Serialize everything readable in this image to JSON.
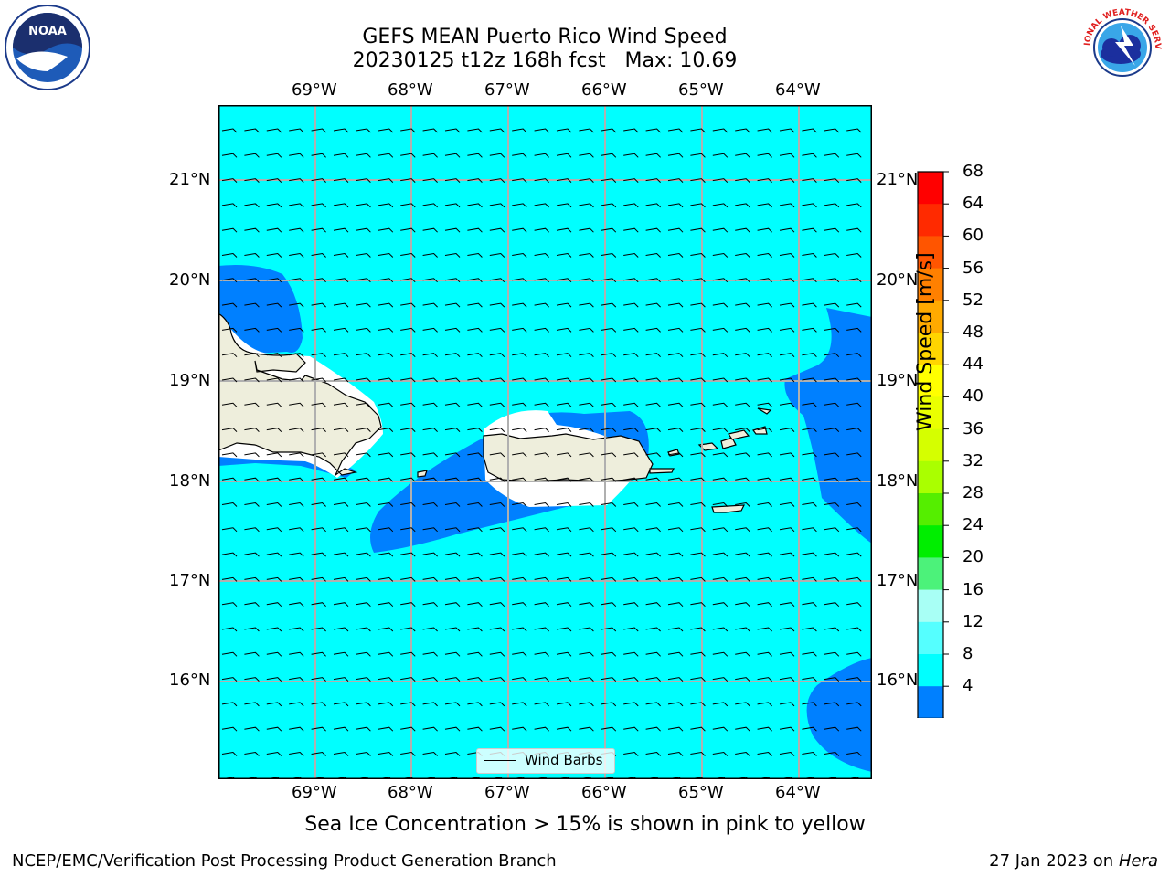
{
  "title": {
    "line1": "GEFS MEAN Puerto Rico Wind Speed",
    "line2": "20230125 t12z 168h fcst   Max: 10.69"
  },
  "x_ticks": [
    "69°W",
    "68°W",
    "67°W",
    "66°W",
    "65°W",
    "64°W"
  ],
  "y_ticks": [
    "21°N",
    "20°N",
    "19°N",
    "18°N",
    "17°N",
    "16°N"
  ],
  "colorbar": {
    "label": "Wind Speed [m/s]",
    "ticks": [
      "68",
      "64",
      "60",
      "56",
      "52",
      "48",
      "44",
      "40",
      "36",
      "32",
      "28",
      "24",
      "20",
      "16",
      "12",
      "8",
      "4"
    ],
    "colors": [
      "#ff0000",
      "#ff2a00",
      "#ff5500",
      "#ff8000",
      "#ffaa00",
      "#ffd500",
      "#ffff00",
      "#eaff00",
      "#d5ff00",
      "#aaff00",
      "#55ee00",
      "#00ee00",
      "#4cf27a",
      "#a8fff5",
      "#55ffff",
      "#00ffff",
      "#0080ff"
    ],
    "under_color": "#0000ff"
  },
  "legend": {
    "label": "Wind Barbs"
  },
  "note": "Sea Ice Concentration > 15% is shown in pink to yellow",
  "footer": {
    "left": "NCEP/EMC/Verification Post Processing Product Generation Branch",
    "right_prefix": "27 Jan 2023 on ",
    "right_host": "Hera"
  },
  "logos": {
    "left": "NOAA",
    "right": "NATIONAL WEATHER SERVICE"
  },
  "map": {
    "background_color": "#00ffff",
    "low_wind_color": "#0080ff",
    "land_color": "#eeeedc"
  }
}
